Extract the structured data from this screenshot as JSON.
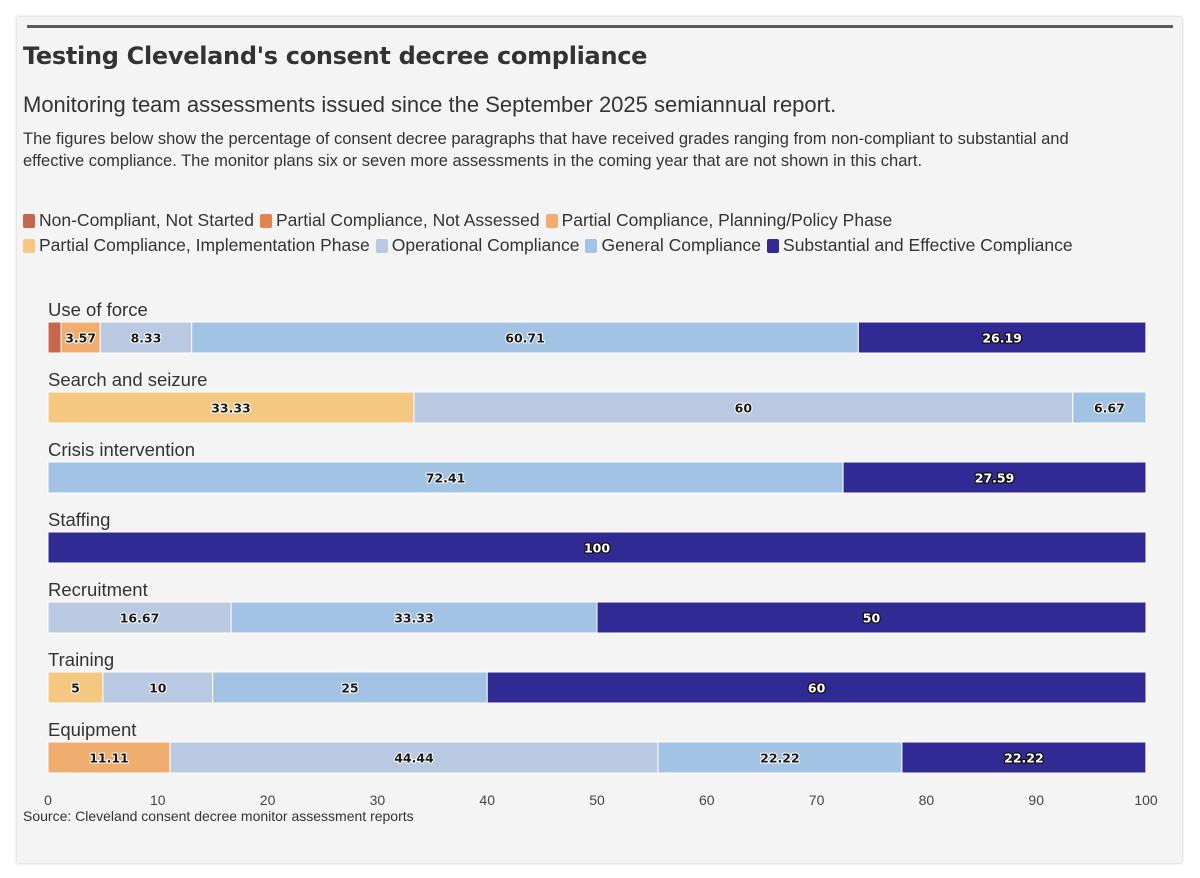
{
  "title": "Testing Cleveland's consent decree compliance",
  "subtitle": "Monitoring team assessments issued since the September 2025 semiannual report.",
  "description": "The figures below show the percentage of consent decree paragraphs that have received grades ranging from non-compliant to substantial and effective compliance. The monitor plans six or seven more assessments in the coming year that are not shown in this chart.",
  "source": "Source: Cleveland consent decree monitor assessment reports",
  "legend": [
    {
      "label": "Non-Compliant, Not Started",
      "color": "#c4674a"
    },
    {
      "label": "Partial Compliance, Not Assessed",
      "color": "#e2844f"
    },
    {
      "label": "Partial Compliance, Planning/Policy Phase",
      "color": "#efae6f"
    },
    {
      "label": "Partial Compliance, Implementation Phase",
      "color": "#f4c881"
    },
    {
      "label": "Operational Compliance",
      "color": "#b9c9e2"
    },
    {
      "label": "General Compliance",
      "color": "#a3c3e4"
    },
    {
      "label": "Substantial and Effective Compliance",
      "color": "#322a94"
    }
  ],
  "chart_data": {
    "type": "bar",
    "orientation": "horizontal",
    "stacked": true,
    "xlim": [
      0,
      100
    ],
    "xticks": [
      0,
      10,
      20,
      30,
      40,
      50,
      60,
      70,
      80,
      90,
      100
    ],
    "categories": [
      "Use of force",
      "Search and seizure",
      "Crisis intervention",
      "Staffing",
      "Recruitment",
      "Training",
      "Equipment"
    ],
    "series": [
      {
        "name": "Non-Compliant, Not Started",
        "values": [
          1.19,
          0,
          0,
          0,
          0,
          0,
          0
        ]
      },
      {
        "name": "Partial Compliance, Not Assessed",
        "values": [
          0,
          0,
          0,
          0,
          0,
          0,
          0
        ]
      },
      {
        "name": "Partial Compliance, Planning/Policy Phase",
        "values": [
          3.57,
          0,
          0,
          0,
          0,
          0,
          11.11
        ]
      },
      {
        "name": "Partial Compliance, Implementation Phase",
        "values": [
          0,
          33.33,
          0,
          0,
          0,
          5,
          0
        ]
      },
      {
        "name": "Operational Compliance",
        "values": [
          8.33,
          60,
          0,
          0,
          16.67,
          10,
          44.44
        ]
      },
      {
        "name": "General Compliance",
        "values": [
          60.71,
          6.67,
          72.41,
          0,
          33.33,
          25,
          22.22
        ]
      },
      {
        "name": "Substantial and Effective Compliance",
        "values": [
          26.19,
          0,
          27.59,
          100,
          50,
          60,
          22.22
        ]
      }
    ]
  }
}
